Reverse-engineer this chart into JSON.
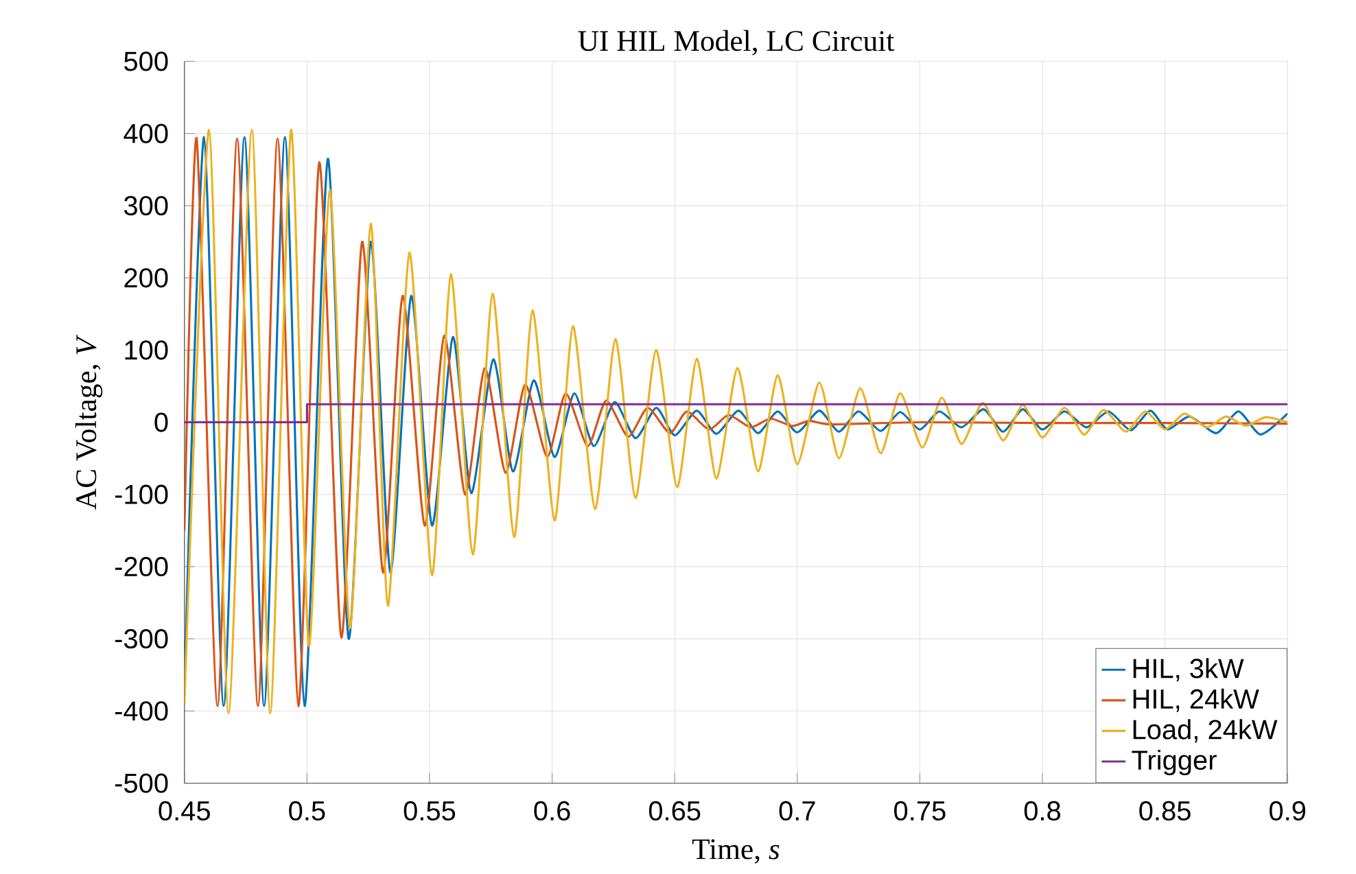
{
  "chart_data": {
    "type": "line",
    "title": "UI HIL Model, LC Circuit",
    "xlabel": "Time, *s*",
    "ylabel": "AC Voltage, *V*",
    "xlim": [
      0.45,
      0.9
    ],
    "xticks": [
      0.45,
      0.5,
      0.55,
      0.6,
      0.65,
      0.7,
      0.75,
      0.8,
      0.85,
      0.9
    ],
    "ylim": [
      -500,
      500
    ],
    "yticks": [
      -500,
      -400,
      -300,
      -200,
      -100,
      0,
      100,
      200,
      300,
      400,
      500
    ],
    "grid": true,
    "legend": "bottom right",
    "series": [
      {
        "name": "HIL, 3kW",
        "color": "#0072bd",
        "x": [
          0.45,
          0.458,
          0.466,
          0.4745,
          0.4825,
          0.491,
          0.499,
          0.5085,
          0.517,
          0.526,
          0.534,
          0.5425,
          0.551,
          0.5595,
          0.567,
          0.576,
          0.584,
          0.5925,
          0.601,
          0.609,
          0.617,
          0.6255,
          0.634,
          0.6425,
          0.65,
          0.659,
          0.667,
          0.676,
          0.684,
          0.692,
          0.7,
          0.709,
          0.717,
          0.725,
          0.734,
          0.742,
          0.75,
          0.758,
          0.767,
          0.776,
          0.784,
          0.792,
          0.8,
          0.809,
          0.818,
          0.827,
          0.836,
          0.844,
          0.851,
          0.86,
          0.871,
          0.88,
          0.889,
          0.9
        ],
        "values": [
          -370,
          395,
          -393,
          395,
          -393,
          395,
          -393,
          365,
          -300,
          250,
          -208,
          175,
          -143,
          118,
          -98,
          87,
          -68,
          58,
          -48,
          40,
          -33,
          28,
          -22,
          20,
          -18,
          16,
          -16,
          16,
          -15,
          15,
          -14,
          16,
          -13,
          15,
          -12,
          14,
          -10,
          15,
          -7,
          18,
          -13,
          18,
          -10,
          15,
          -7,
          15,
          -11,
          16,
          -10,
          8,
          -15,
          15,
          -17,
          12
        ]
      },
      {
        "name": "HIL, 24kW",
        "color": "#d95319",
        "x": [
          0.45,
          0.455,
          0.4635,
          0.4715,
          0.48,
          0.488,
          0.4965,
          0.505,
          0.514,
          0.5225,
          0.531,
          0.539,
          0.548,
          0.556,
          0.5645,
          0.5725,
          0.581,
          0.589,
          0.598,
          0.6055,
          0.6145,
          0.622,
          0.631,
          0.639,
          0.648,
          0.655,
          0.664,
          0.672,
          0.681,
          0.689,
          0.698,
          0.705,
          0.714,
          0.75,
          0.8,
          0.85,
          0.9
        ],
        "values": [
          -150,
          393,
          -393,
          393,
          -393,
          393,
          -393,
          360,
          -298,
          250,
          -208,
          175,
          -143,
          120,
          -100,
          75,
          -70,
          52,
          -48,
          40,
          -33,
          30,
          -20,
          20,
          -15,
          15,
          -10,
          10,
          -7,
          5,
          -5,
          2,
          -3,
          0,
          -1,
          -1,
          -2
        ]
      },
      {
        "name": "Load, 24kW",
        "color": "#edb120",
        "x": [
          0.45,
          0.46,
          0.468,
          0.4775,
          0.485,
          0.4935,
          0.5008,
          0.5093,
          0.5175,
          0.526,
          0.533,
          0.5418,
          0.551,
          0.5587,
          0.5676,
          0.5757,
          0.5845,
          0.592,
          0.601,
          0.6085,
          0.6175,
          0.6258,
          0.634,
          0.6424,
          0.651,
          0.659,
          0.667,
          0.6756,
          0.684,
          0.692,
          0.7,
          0.709,
          0.717,
          0.7257,
          0.734,
          0.742,
          0.751,
          0.759,
          0.767,
          0.7756,
          0.784,
          0.792,
          0.8,
          0.809,
          0.817,
          0.825,
          0.834,
          0.842,
          0.85,
          0.858,
          0.867,
          0.875,
          0.883,
          0.891,
          0.9
        ],
        "values": [
          -390,
          405,
          -403,
          405,
          -403,
          405,
          -310,
          322,
          -285,
          275,
          -254,
          235,
          -212,
          205,
          -183,
          178,
          -159,
          155,
          -136,
          133,
          -120,
          115,
          -105,
          100,
          -90,
          88,
          -78,
          75,
          -68,
          65,
          -58,
          55,
          -50,
          47,
          -43,
          40,
          -35,
          34,
          -30,
          27,
          -25,
          24,
          -21,
          20,
          -17,
          17,
          -13,
          15,
          -10,
          12,
          -7,
          8,
          -5,
          7,
          0
        ]
      },
      {
        "name": "Trigger",
        "color": "#7e2f8e",
        "type": "step",
        "x": [
          0.45,
          0.5,
          0.9
        ],
        "values": [
          0,
          25,
          25
        ]
      }
    ]
  }
}
